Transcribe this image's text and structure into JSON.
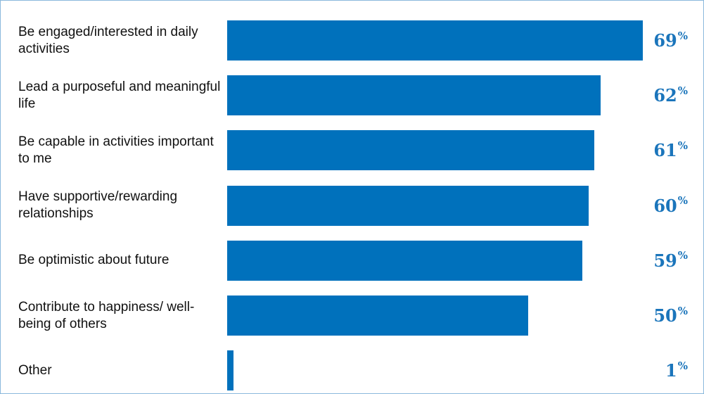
{
  "chart_data": {
    "type": "hbar",
    "categories": [
      "Be engaged/interested in daily activities",
      "Lead a purposeful and meaningful life",
      "Be capable in activities important to me",
      "Have supportive/rewarding relationships",
      "Be optimistic about future",
      "Contribute to happiness/ well-being of others",
      "Other"
    ],
    "values": [
      69,
      62,
      61,
      60,
      59,
      50,
      1
    ],
    "value_labels": [
      "69%",
      "62%",
      "61%",
      "60%",
      "59%",
      "50%",
      "1%"
    ],
    "color": "#0071bc"
  }
}
